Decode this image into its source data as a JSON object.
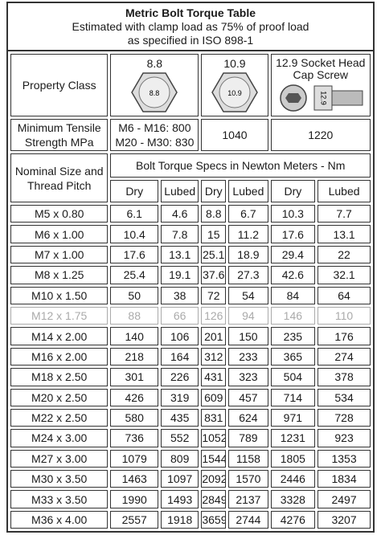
{
  "header": {
    "title": "Metric Bolt Torque Table",
    "subtitle_lines": [
      "Estimated with clamp load as 75% of proof load",
      "as specified in ISO 898-1"
    ]
  },
  "table": {
    "property_class": {
      "label": "Property Class",
      "classes": [
        {
          "name": "8.8",
          "icon_label": "8.8"
        },
        {
          "name": "10.9",
          "icon_label": "10.9"
        },
        {
          "name": "12.9 Socket Head Cap Screw",
          "icon_label": "12.9"
        }
      ]
    },
    "tensile": {
      "label": "Minimum Tensile Strength MPa",
      "values": [
        [
          "M6 - M16: 800",
          "M20 - M30: 830"
        ],
        "1040",
        "1220"
      ]
    },
    "size_header": "Nominal Size and Thread Pitch",
    "spec_header": "Bolt Torque Specs in Newton Meters - Nm",
    "sub_headers": [
      "Dry",
      "Lubed",
      "Dry",
      "Lubed",
      "Dry",
      "Lubed"
    ],
    "rows": [
      [
        "M5 x 0.80",
        "6.1",
        "4.6",
        "8.8",
        "6.7",
        "10.3",
        "7.7"
      ],
      [
        "M6 x 1.00",
        "10.4",
        "7.8",
        "15",
        "11.2",
        "17.6",
        "13.1"
      ],
      [
        "M7 x 1.00",
        "17.6",
        "13.1",
        "25.1",
        "18.9",
        "29.4",
        "22"
      ],
      [
        "M8 x 1.25",
        "25.4",
        "19.1",
        "37.6",
        "27.3",
        "42.6",
        "32.1"
      ],
      [
        "M10 x 1.50",
        "50",
        "38",
        "72",
        "54",
        "84",
        "64"
      ],
      [
        "M12 x 1.75",
        "88",
        "66",
        "126",
        "94",
        "146",
        "110"
      ],
      [
        "M14 x 2.00",
        "140",
        "106",
        "201",
        "150",
        "235",
        "176"
      ],
      [
        "M16 x 2.00",
        "218",
        "164",
        "312",
        "233",
        "365",
        "274"
      ],
      [
        "M18 x 2.50",
        "301",
        "226",
        "431",
        "323",
        "504",
        "378"
      ],
      [
        "M20 x 2.50",
        "426",
        "319",
        "609",
        "457",
        "714",
        "534"
      ],
      [
        "M22 x 2.50",
        "580",
        "435",
        "831",
        "624",
        "971",
        "728"
      ],
      [
        "M24 x 3.00",
        "736",
        "552",
        "1052",
        "789",
        "1231",
        "923"
      ],
      [
        "M27 x 3.00",
        "1079",
        "809",
        "1544",
        "1158",
        "1805",
        "1353"
      ],
      [
        "M30 x 3.50",
        "1463",
        "1097",
        "2092",
        "1570",
        "2446",
        "1834"
      ],
      [
        "M33 x 3.50",
        "1990",
        "1493",
        "2849",
        "2137",
        "3328",
        "2497"
      ],
      [
        "M36 x 4.00",
        "2557",
        "1918",
        "3659",
        "2744",
        "4276",
        "3207"
      ]
    ]
  }
}
